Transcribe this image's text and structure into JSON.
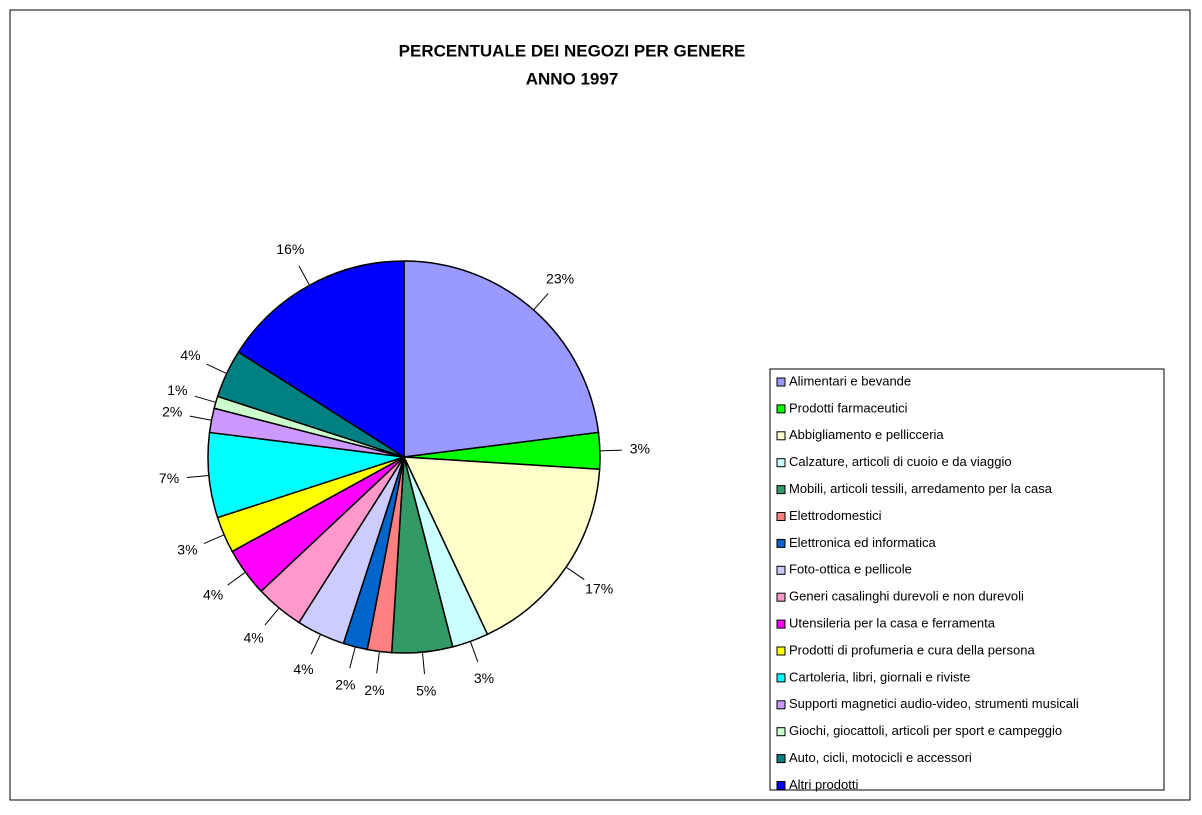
{
  "chart_data": {
    "type": "pie",
    "title": "PERCENTUALE DEI NEGOZI PER GENERE",
    "subtitle": "ANNO 1997",
    "categories": [
      "Alimentari e bevande",
      "Prodotti farmaceutici",
      "Abbigliamento e pellicceria",
      "Calzature, articoli di cuoio e da viaggio",
      "Mobili, articoli tessili, arredamento per la casa",
      "Elettrodomestici",
      "Elettronica ed informatica",
      "Foto-ottica e pellicole",
      "Generi casalinghi durevoli e non durevoli",
      "Utensileria per la casa e ferramenta",
      "Prodotti di profumeria e cura della persona",
      "Cartoleria, libri, giornali e riviste",
      "Supporti magnetici audio-video, strumenti musicali",
      "Giochi, giocattoli, articoli per sport e campeggio",
      "Auto, cicli, motocicli e accessori",
      "Altri prodotti"
    ],
    "values": [
      23,
      3,
      17,
      3,
      5,
      2,
      2,
      4,
      4,
      4,
      3,
      7,
      2,
      1,
      4,
      16
    ],
    "value_labels": [
      "23%",
      "3%",
      "17%",
      "3%",
      "5%",
      "2%",
      "2%",
      "4%",
      "4%",
      "4%",
      "3%",
      "7%",
      "2%",
      "1%",
      "4%",
      "16%"
    ],
    "colors": [
      "#9999ff",
      "#00ff00",
      "#ffffcc",
      "#ccffff",
      "#339966",
      "#ff8080",
      "#0066cc",
      "#ccccff",
      "#ff99cc",
      "#ff00ff",
      "#ffff00",
      "#00ffff",
      "#cc99ff",
      "#ccffcc",
      "#008080",
      "#0000ff"
    ],
    "legend": "right"
  }
}
